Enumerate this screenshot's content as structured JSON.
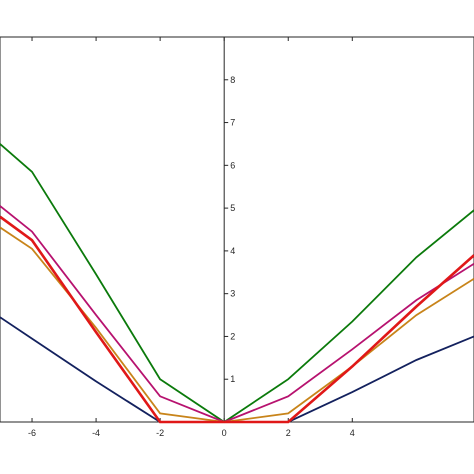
{
  "chart_data": {
    "type": "line",
    "title": "",
    "xlabel": "",
    "ylabel": "",
    "xlim": [
      -7,
      7.8
    ],
    "ylim": [
      0,
      9
    ],
    "x_ticks": [
      -6,
      -4,
      -2,
      0,
      2,
      4
    ],
    "y_ticks": [
      1,
      2,
      3,
      4,
      5,
      6,
      7,
      8
    ],
    "x_tick_labels": [
      "-6",
      "-4",
      "-2",
      "0",
      "2",
      "4"
    ],
    "y_tick_labels": [
      "1",
      "2",
      "3",
      "4",
      "5",
      "6",
      "7",
      "8"
    ],
    "grid": false,
    "series": [
      {
        "color": "#0b7a0b",
        "x": [
          -7,
          -6,
          -4,
          -2,
          0,
          2,
          4,
          6,
          7.8
        ],
        "y": [
          6.5,
          5.85,
          3.45,
          1.0,
          0.0,
          1.0,
          2.35,
          3.85,
          4.95
        ]
      },
      {
        "color": "#b7126f",
        "x": [
          -7,
          -6,
          -4,
          -2,
          0,
          2,
          4,
          6,
          7.8
        ],
        "y": [
          5.05,
          4.45,
          2.5,
          0.6,
          0.0,
          0.6,
          1.7,
          2.85,
          3.7
        ]
      },
      {
        "color": "#c8841a",
        "x": [
          -7,
          -6,
          -4,
          -2,
          0,
          2,
          4,
          6,
          7.8
        ],
        "y": [
          4.55,
          4.05,
          2.2,
          0.2,
          0.0,
          0.2,
          1.3,
          2.5,
          3.35
        ]
      },
      {
        "color": "#13215e",
        "x": [
          -7,
          -6,
          -4,
          -2,
          0,
          2,
          4,
          6,
          7.8
        ],
        "y": [
          2.45,
          1.95,
          0.95,
          0.0,
          0.0,
          0.0,
          0.7,
          1.45,
          2.0
        ]
      },
      {
        "color": "#e01818",
        "x": [
          -7,
          -6,
          -4,
          -2,
          0,
          2,
          4,
          6,
          7.8
        ],
        "y": [
          4.8,
          4.25,
          2.1,
          0.0,
          0.0,
          0.0,
          1.3,
          2.7,
          3.9
        ]
      }
    ]
  }
}
